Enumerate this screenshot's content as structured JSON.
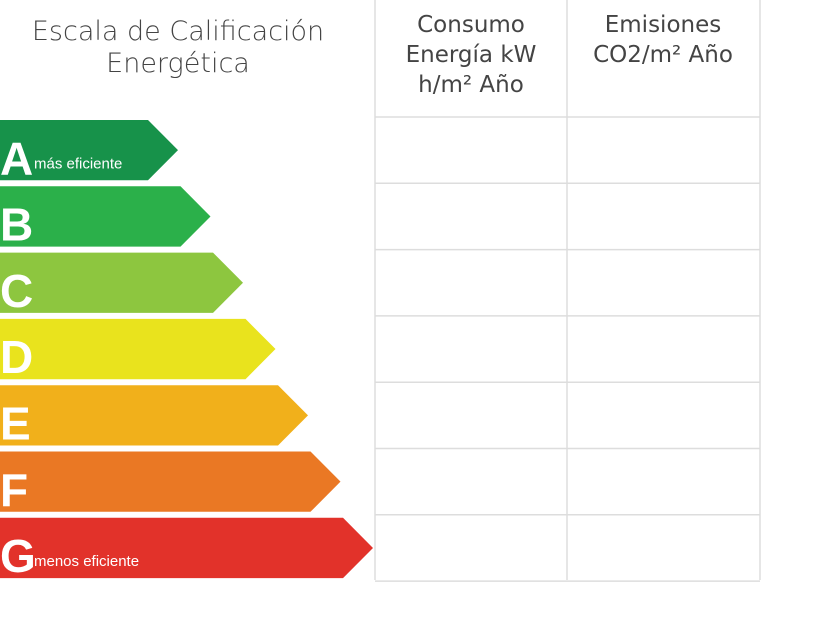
{
  "header": {
    "title": [
      "Escala de Calificación",
      "Energética"
    ],
    "columns": [
      [
        "Consumo",
        "Energía kW",
        "h/m² Año"
      ],
      [
        "Emisiones",
        "CO2/m² Año"
      ]
    ]
  },
  "rows": [
    {
      "letter": "A",
      "note": "más eficiente",
      "color": "#17924a"
    },
    {
      "letter": "B",
      "color": "#2bb04a"
    },
    {
      "letter": "C",
      "color": "#8dc63f"
    },
    {
      "letter": "D",
      "color": "#e9e31d"
    },
    {
      "letter": "E",
      "color": "#f1b01b"
    },
    {
      "letter": "F",
      "color": "#ea7824"
    },
    {
      "letter": "G",
      "note": "menos eficiente",
      "color": "#e2322a"
    }
  ]
}
